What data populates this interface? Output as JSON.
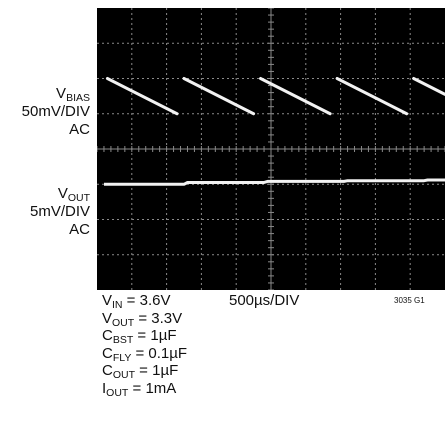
{
  "chart_data": {
    "type": "line",
    "divisions": {
      "x": 10,
      "y": 8
    },
    "grid": true,
    "background_color": "#000000",
    "trace_color": "#f2f2f2",
    "grid_color": "#8a8a8a",
    "x_scale": "500µs/DIV",
    "channels": [
      {
        "name_main": "V",
        "name_sub": "BIAS",
        "scale": "50mV/DIV",
        "coupling": "AC",
        "shape": "sawtooth",
        "baseline_div": 3,
        "ramps": [
          {
            "x_start": 0.3,
            "x_end": 2.3,
            "y_start_div": 1.0,
            "y_end_div": 0.0
          },
          {
            "x_start": 2.5,
            "x_end": 4.5,
            "y_start_div": 1.0,
            "y_end_div": 0.0
          },
          {
            "x_start": 4.7,
            "x_end": 6.7,
            "y_start_div": 1.0,
            "y_end_div": 0.0
          },
          {
            "x_start": 6.9,
            "x_end": 8.9,
            "y_start_div": 1.0,
            "y_end_div": 0.0
          },
          {
            "x_start": 9.1,
            "x_end": 10.0,
            "y_start_div": 1.0,
            "y_end_div": 0.55
          }
        ]
      },
      {
        "name_main": "V",
        "name_sub": "OUT",
        "scale": "5mV/DIV",
        "coupling": "AC",
        "shape": "flat",
        "baseline_div": 5,
        "x": [
          0.2,
          2.5,
          2.6,
          4.8,
          4.9,
          7.1,
          7.2,
          9.4,
          9.5,
          10.0
        ],
        "y_div": [
          0.0,
          0.0,
          0.05,
          0.05,
          0.08,
          0.08,
          0.1,
          0.1,
          0.12,
          0.12
        ]
      }
    ]
  },
  "conditions": {
    "vin": {
      "main": "V",
      "sub": "IN",
      "rest": " = 3.6V"
    },
    "vout": {
      "main": "V",
      "sub": "OUT",
      "rest": " = 3.3V"
    },
    "cbst": {
      "main": "C",
      "sub": "BST",
      "rest": " = 1µF"
    },
    "cfly": {
      "main": "C",
      "sub": "FLY",
      "rest": " = 0.1µF"
    },
    "cout": {
      "main": "C",
      "sub": "OUT",
      "rest": " = 1µF"
    },
    "iout": {
      "main": "I",
      "sub": "OUT",
      "rest": " = 1mA"
    }
  },
  "figure_id": "3035 G1"
}
